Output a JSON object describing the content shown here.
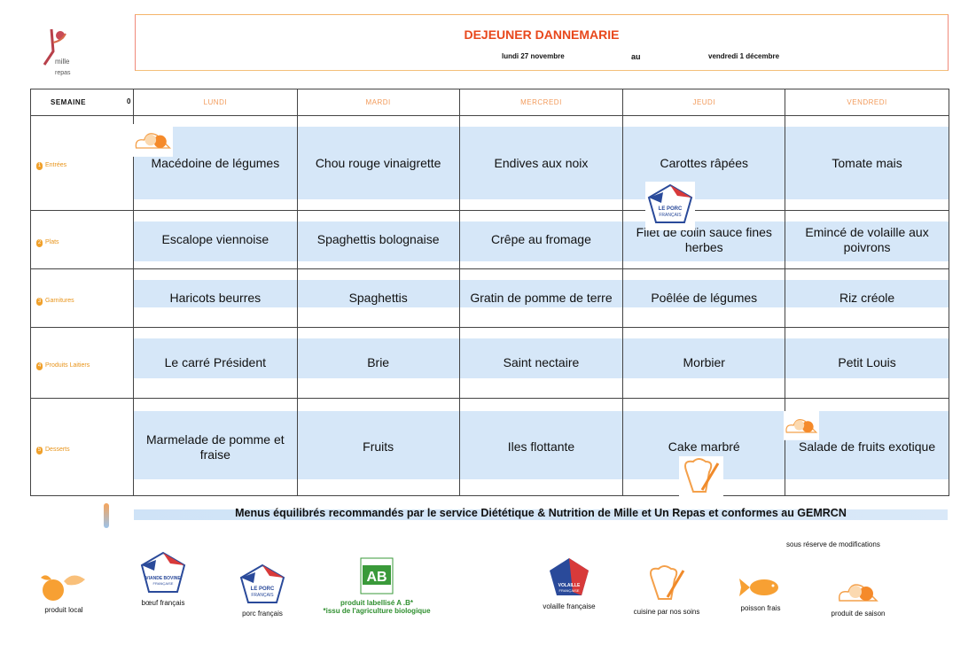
{
  "brand": {
    "logo_text": "mille et un repas"
  },
  "header": {
    "title": "DEJEUNER DANNEMARIE",
    "date_from": "lundi 27 novembre",
    "date_sep": "au",
    "date_to": "vendredi 1 décembre"
  },
  "table": {
    "week_label": "SEMAINE",
    "week_number": "0",
    "days": [
      "LUNDI",
      "MARDI",
      "MERCREDI",
      "JEUDI",
      "VENDREDI"
    ],
    "rows": [
      {
        "num": "1",
        "category": "Entrées",
        "dishes": [
          "Macédoine de légumes",
          "Chou rouge vinaigrette",
          "Endives aux noix",
          "Carottes râpées",
          "Tomate mais"
        ]
      },
      {
        "num": "2",
        "category": "Plats",
        "dishes": [
          "Escalope viennoise",
          "Spaghettis bolognaise",
          "Crêpe au fromage",
          "Filet de colin sauce fines herbes",
          "Emincé de volaille aux poivrons"
        ]
      },
      {
        "num": "3",
        "category": "Garnitures",
        "dishes": [
          "Haricots beurres",
          "Spaghettis",
          "Gratin de pomme de terre",
          "Poêlée de légumes",
          "Riz  créole"
        ]
      },
      {
        "num": "4",
        "category": "Produits Laitiers",
        "dishes": [
          "Le carré Président",
          "Brie",
          "Saint nectaire",
          "Morbier",
          "Petit Louis"
        ]
      },
      {
        "num": "5",
        "category": "Desserts",
        "dishes": [
          "Marmelade de pomme et fraise",
          "Fruits",
          "Iles flottante",
          "Cake marbré",
          "Salade de fruits exotique"
        ]
      }
    ],
    "badges": [
      {
        "day": "LUNDI",
        "row": "Entrées",
        "icon": "produit-de-saison-icon"
      },
      {
        "day": "JEUDI",
        "row": "Plats",
        "icon": "porc-francais-icon"
      },
      {
        "day": "JEUDI",
        "row": "Desserts",
        "icon": "cuisine-par-nos-soins-icon"
      },
      {
        "day": "VENDREDI",
        "row": "Desserts",
        "icon": "produit-de-saison-icon"
      }
    ]
  },
  "footer": {
    "gemrcn": "Menus équilibrés recommandés par le service Diététique & Nutrition de Mille et Un Repas et conformes au GEMRCN",
    "reserve": "sous réserve de modifications",
    "legend": [
      {
        "icon": "produit-local-icon",
        "label": "produit local"
      },
      {
        "icon": "boeuf-francais-icon",
        "label": "bœuf français",
        "logo_text": "VIANDE BOVINE FRANÇAISE"
      },
      {
        "icon": "porc-francais-icon",
        "label": "porc français",
        "logo_text": "LE PORC FRANÇAIS"
      },
      {
        "icon": "ab-label-icon",
        "label": "produit labellisé A .B*",
        "note": "*issu de l'agriculture biologique",
        "logo_text": "AB"
      },
      {
        "icon": "volaille-francaise-icon",
        "label": "volaille française",
        "logo_text": "VOLAILLE FRANÇAISE"
      },
      {
        "icon": "cuisine-par-nos-soins-icon",
        "label": "cuisine par nos soins"
      },
      {
        "icon": "poisson-frais-icon",
        "label": "poisson frais"
      },
      {
        "icon": "produit-de-saison-icon",
        "label": "produit de saison"
      }
    ]
  },
  "colors": {
    "title": "#e8481c",
    "day_header": "#f29a5a",
    "category": "#e8941a",
    "band": "#d6e7f8",
    "bio_green": "#2f8f2f"
  }
}
